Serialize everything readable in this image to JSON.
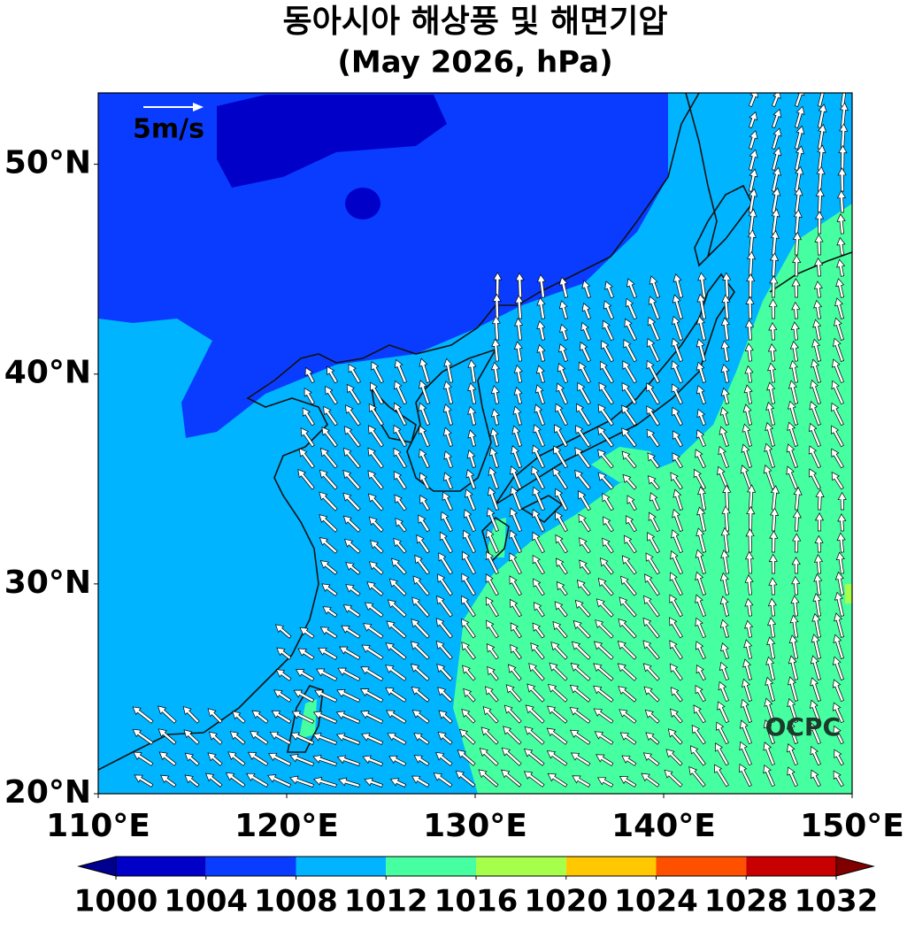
{
  "title": "동아시아 해상풍 및 해면기압",
  "subtitle": "(May 2026, hPa)",
  "map": {
    "xlim": [
      110,
      150
    ],
    "ylim": [
      20,
      53.4
    ],
    "xticks": [
      {
        "value": 110,
        "label": "110°E"
      },
      {
        "value": 120,
        "label": "120°E"
      },
      {
        "value": 130,
        "label": "130°E"
      },
      {
        "value": 140,
        "label": "140°E"
      },
      {
        "value": 150,
        "label": "150°E"
      }
    ],
    "yticks": [
      {
        "value": 20,
        "label": "20°N"
      },
      {
        "value": 30,
        "label": "30°N"
      },
      {
        "value": 40,
        "label": "40°N"
      },
      {
        "value": 50,
        "label": "50°N"
      }
    ],
    "scale_label": "5m/s",
    "credit": "OCPC"
  },
  "colorbar": {
    "levels": [
      1000,
      1004,
      1008,
      1012,
      1016,
      1020,
      1024,
      1028,
      1032
    ],
    "colors": [
      "#0000c8",
      "#0a3cff",
      "#00b4ff",
      "#46ffa0",
      "#a5ff4b",
      "#ffc800",
      "#ff5000",
      "#c80000"
    ],
    "under_color": "#000090",
    "over_color": "#800000"
  }
}
